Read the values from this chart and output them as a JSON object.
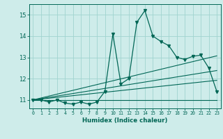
{
  "x": [
    0,
    1,
    2,
    3,
    4,
    5,
    6,
    7,
    8,
    9,
    10,
    11,
    12,
    13,
    14,
    15,
    16,
    17,
    18,
    19,
    20,
    21,
    22,
    23
  ],
  "y_main": [
    11.0,
    11.0,
    10.9,
    11.0,
    10.85,
    10.8,
    10.9,
    10.8,
    10.9,
    11.4,
    14.1,
    11.75,
    12.0,
    14.65,
    15.2,
    14.0,
    13.75,
    13.55,
    13.0,
    12.9,
    13.05,
    13.1,
    12.5,
    11.4
  ],
  "y_flat": [
    11.0,
    11.0,
    11.0,
    11.0,
    11.0,
    11.0,
    11.0,
    11.0,
    11.0,
    11.0,
    11.0,
    11.0,
    11.0,
    11.0,
    11.0,
    11.0,
    11.0,
    11.0,
    11.0,
    11.0,
    11.0,
    11.0,
    11.0,
    11.0
  ],
  "regression1": [
    11.0,
    11.09,
    11.18,
    11.27,
    11.36,
    11.45,
    11.54,
    11.63,
    11.72,
    11.81,
    11.9,
    11.99,
    12.08,
    12.17,
    12.26,
    12.35,
    12.44,
    12.53,
    12.62,
    12.71,
    12.8,
    12.89,
    12.98,
    13.07
  ],
  "regression2": [
    11.0,
    11.06,
    11.12,
    11.18,
    11.24,
    11.3,
    11.36,
    11.42,
    11.48,
    11.54,
    11.6,
    11.66,
    11.72,
    11.78,
    11.84,
    11.9,
    11.96,
    12.02,
    12.08,
    12.14,
    12.2,
    12.26,
    12.32,
    12.38
  ],
  "regression3": [
    11.0,
    11.04,
    11.08,
    11.12,
    11.16,
    11.2,
    11.24,
    11.28,
    11.32,
    11.36,
    11.4,
    11.44,
    11.48,
    11.52,
    11.56,
    11.6,
    11.64,
    11.68,
    11.72,
    11.76,
    11.8,
    11.84,
    11.88,
    11.92
  ],
  "bg_color": "#ceecea",
  "line_color": "#006655",
  "grid_color": "#a0d4cf",
  "xlabel": "Humidex (Indice chaleur)",
  "xlim": [
    -0.5,
    23.5
  ],
  "ylim": [
    10.6,
    15.5
  ],
  "yticks": [
    11,
    12,
    13,
    14,
    15
  ],
  "xticks": [
    0,
    1,
    2,
    3,
    4,
    5,
    6,
    7,
    8,
    9,
    10,
    11,
    12,
    13,
    14,
    15,
    16,
    17,
    18,
    19,
    20,
    21,
    22,
    23
  ]
}
